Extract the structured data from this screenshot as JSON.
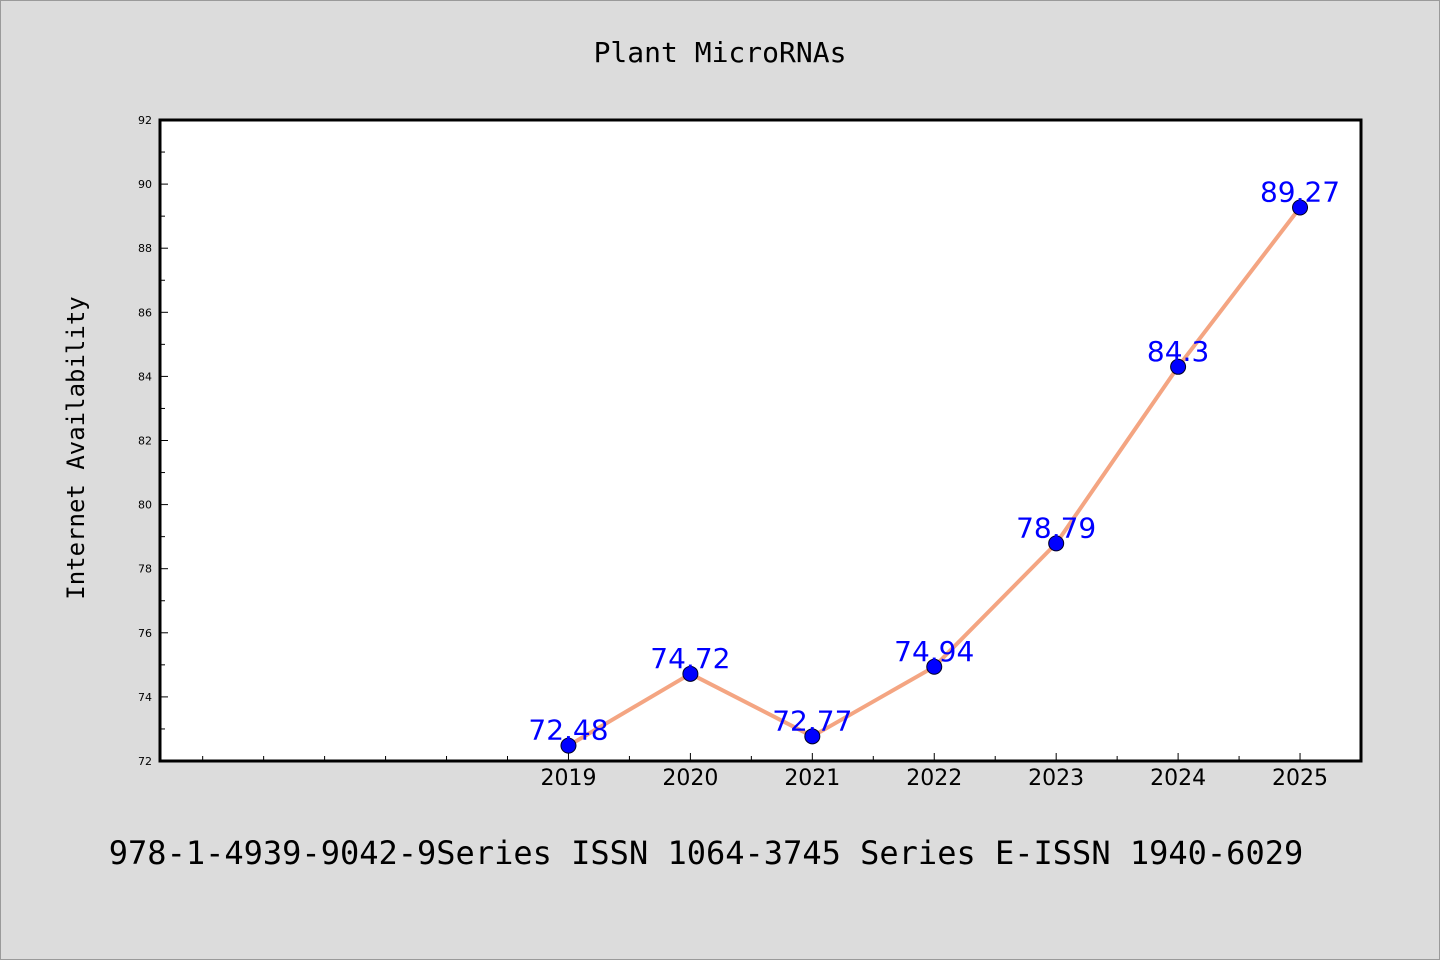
{
  "chart_data": {
    "type": "line",
    "title": "Plant MicroRNAs",
    "xlabel": "",
    "ylabel": "Internet Availability",
    "footer": "978-1-4939-9042-9Series ISSN 1064-3745 Series E-ISSN 1940-6029",
    "x": [
      2019,
      2020,
      2021,
      2022,
      2023,
      2024,
      2025
    ],
    "x_tick_labels": [
      "2019",
      "2020",
      "2021",
      "2022",
      "2023",
      "2024",
      "2025"
    ],
    "values": [
      72.48,
      74.72,
      72.77,
      74.94,
      78.79,
      84.3,
      89.27
    ],
    "data_labels": [
      "72.48",
      "74.72",
      "72.77",
      "74.94",
      "78.79",
      "84.3",
      "89.27"
    ],
    "ylim": [
      72,
      92
    ],
    "y_ticks": [
      72,
      74,
      76,
      78,
      80,
      82,
      84,
      86,
      88,
      90,
      92
    ],
    "xlim": [
      2015.65,
      2025.5
    ],
    "grid": false,
    "line_color": "#f4a582",
    "marker_color": "#0000ff",
    "label_color": "#0000ff"
  }
}
